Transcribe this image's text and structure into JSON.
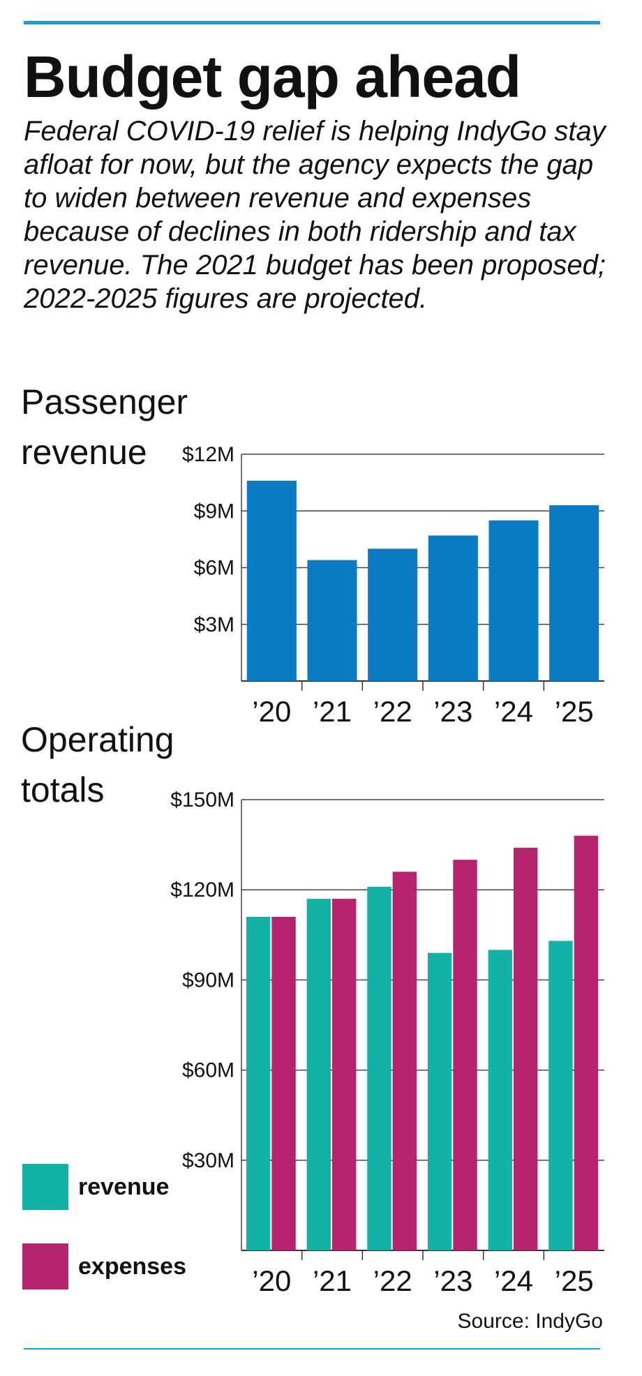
{
  "title": "Budget gap ahead",
  "subtitle": "Federal COVID-19 relief is helping IndyGo stay afloat for now, but the agency expects the gap to widen between revenue and expenses because of declines in both ridership and tax revenue. The 2021 budget has been proposed; 2022-2025 figures are projected.",
  "source": "Source: IndyGo",
  "colors": {
    "accent_rule": "#1e9ad6",
    "passenger": "#0a7bc4",
    "revenue": "#12b3a6",
    "expenses": "#b8236f"
  },
  "chart_data": [
    {
      "type": "bar",
      "title": "Passenger\nrevenue",
      "categories": [
        "’20",
        "’21",
        "’22",
        "’23",
        "’24",
        "’25"
      ],
      "series": [
        {
          "values": [
            10.6,
            6.4,
            7.0,
            7.7,
            8.5,
            9.3
          ],
          "color": "#0a7bc4"
        }
      ],
      "unit": "millions of dollars",
      "ylim": [
        0,
        12
      ],
      "yticks": [
        {
          "value": 3,
          "label": "$3M"
        },
        {
          "value": 6,
          "label": "$6M"
        },
        {
          "value": 9,
          "label": "$9M"
        },
        {
          "value": 12,
          "label": "$12M"
        }
      ],
      "grid": true
    },
    {
      "type": "bar",
      "title": "Operating\ntotals",
      "categories": [
        "’20",
        "’21",
        "’22",
        "’23",
        "’24",
        "’25"
      ],
      "series": [
        {
          "name": "revenue",
          "values": [
            111,
            117,
            121,
            99,
            100,
            103
          ],
          "color": "#12b3a6"
        },
        {
          "name": "expenses",
          "values": [
            111,
            117,
            126,
            130,
            134,
            138
          ],
          "color": "#b8236f"
        }
      ],
      "unit": "millions of dollars",
      "ylim": [
        0,
        150
      ],
      "yticks": [
        {
          "value": 30,
          "label": "$30M"
        },
        {
          "value": 60,
          "label": "$60M"
        },
        {
          "value": 90,
          "label": "$90M"
        },
        {
          "value": 120,
          "label": "$120M"
        },
        {
          "value": 150,
          "label": "$150M"
        }
      ],
      "grid": true,
      "legend": "bottom-left"
    }
  ],
  "legend": [
    {
      "label": "revenue",
      "color": "#12b3a6"
    },
    {
      "label": "expenses",
      "color": "#b8236f"
    }
  ]
}
